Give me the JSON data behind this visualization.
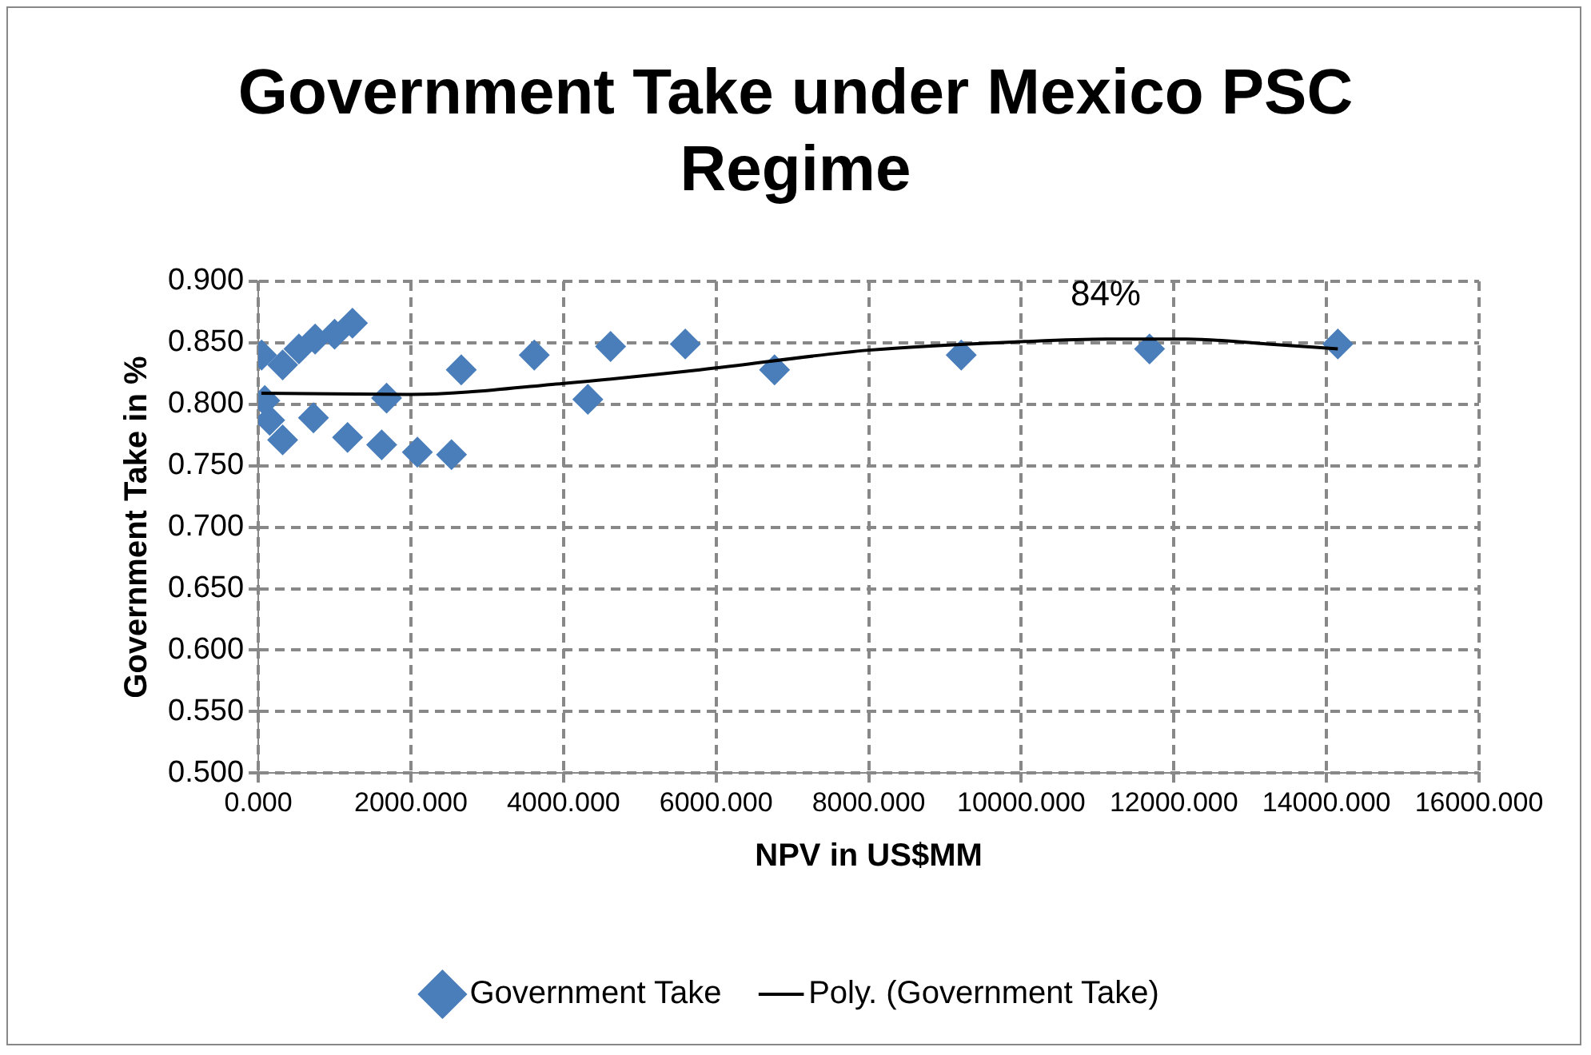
{
  "chart_data": {
    "type": "scatter",
    "title": "Government Take under Mexico PSC Regime",
    "xlabel": "NPV in US$MM",
    "ylabel": "Government Take in %",
    "xlim": [
      0,
      16000
    ],
    "xticks": [
      {
        "value": 0,
        "label": "0.000"
      },
      {
        "value": 2000,
        "label": "2000.000"
      },
      {
        "value": 4000,
        "label": "4000.000"
      },
      {
        "value": 6000,
        "label": "6000.000"
      },
      {
        "value": 8000,
        "label": "8000.000"
      },
      {
        "value": 10000,
        "label": "10000.000"
      },
      {
        "value": 12000,
        "label": "12000.000"
      },
      {
        "value": 14000,
        "label": "14000.000"
      },
      {
        "value": 16000,
        "label": "16000.000"
      }
    ],
    "ylim": [
      0.5,
      0.9
    ],
    "yticks": [
      {
        "value": 0.5,
        "label": "0.500"
      },
      {
        "value": 0.55,
        "label": "0.550"
      },
      {
        "value": 0.6,
        "label": "0.600"
      },
      {
        "value": 0.65,
        "label": "0.650"
      },
      {
        "value": 0.7,
        "label": "0.700"
      },
      {
        "value": 0.75,
        "label": "0.750"
      },
      {
        "value": 0.8,
        "label": "0.800"
      },
      {
        "value": 0.85,
        "label": "0.850"
      },
      {
        "value": 0.9,
        "label": "0.900"
      }
    ],
    "grid": true,
    "legend": "bottom",
    "marker": "diamond",
    "series": [
      {
        "name": "Government Take",
        "type": "scatter",
        "color": "#4a7ebb",
        "x": [
          43,
          85,
          149,
          319,
          319,
          532,
          745,
          1000,
          1234,
          723,
          1170,
          1617,
          1681,
          2085,
          2532,
          2660,
          3617,
          4319,
          4617,
          5596,
          6766,
          9213,
          11681,
          14149
        ],
        "values": [
          0.84,
          0.803,
          0.787,
          0.771,
          0.832,
          0.845,
          0.853,
          0.857,
          0.866,
          0.789,
          0.773,
          0.767,
          0.805,
          0.761,
          0.759,
          0.828,
          0.84,
          0.804,
          0.847,
          0.849,
          0.828,
          0.84,
          0.845,
          0.849
        ]
      },
      {
        "name": "Poly. (Government Take)",
        "type": "line",
        "color": "#000000",
        "marker": "none",
        "line_style": "solid",
        "x": [
          40,
          2000,
          4000,
          5787,
          8000,
          10043,
          11106,
          12170,
          13234,
          14149
        ],
        "values": [
          0.809,
          0.808,
          0.817,
          0.828,
          0.844,
          0.851,
          0.853,
          0.853,
          0.849,
          0.845
        ]
      }
    ],
    "annotations": [
      "84%"
    ]
  }
}
